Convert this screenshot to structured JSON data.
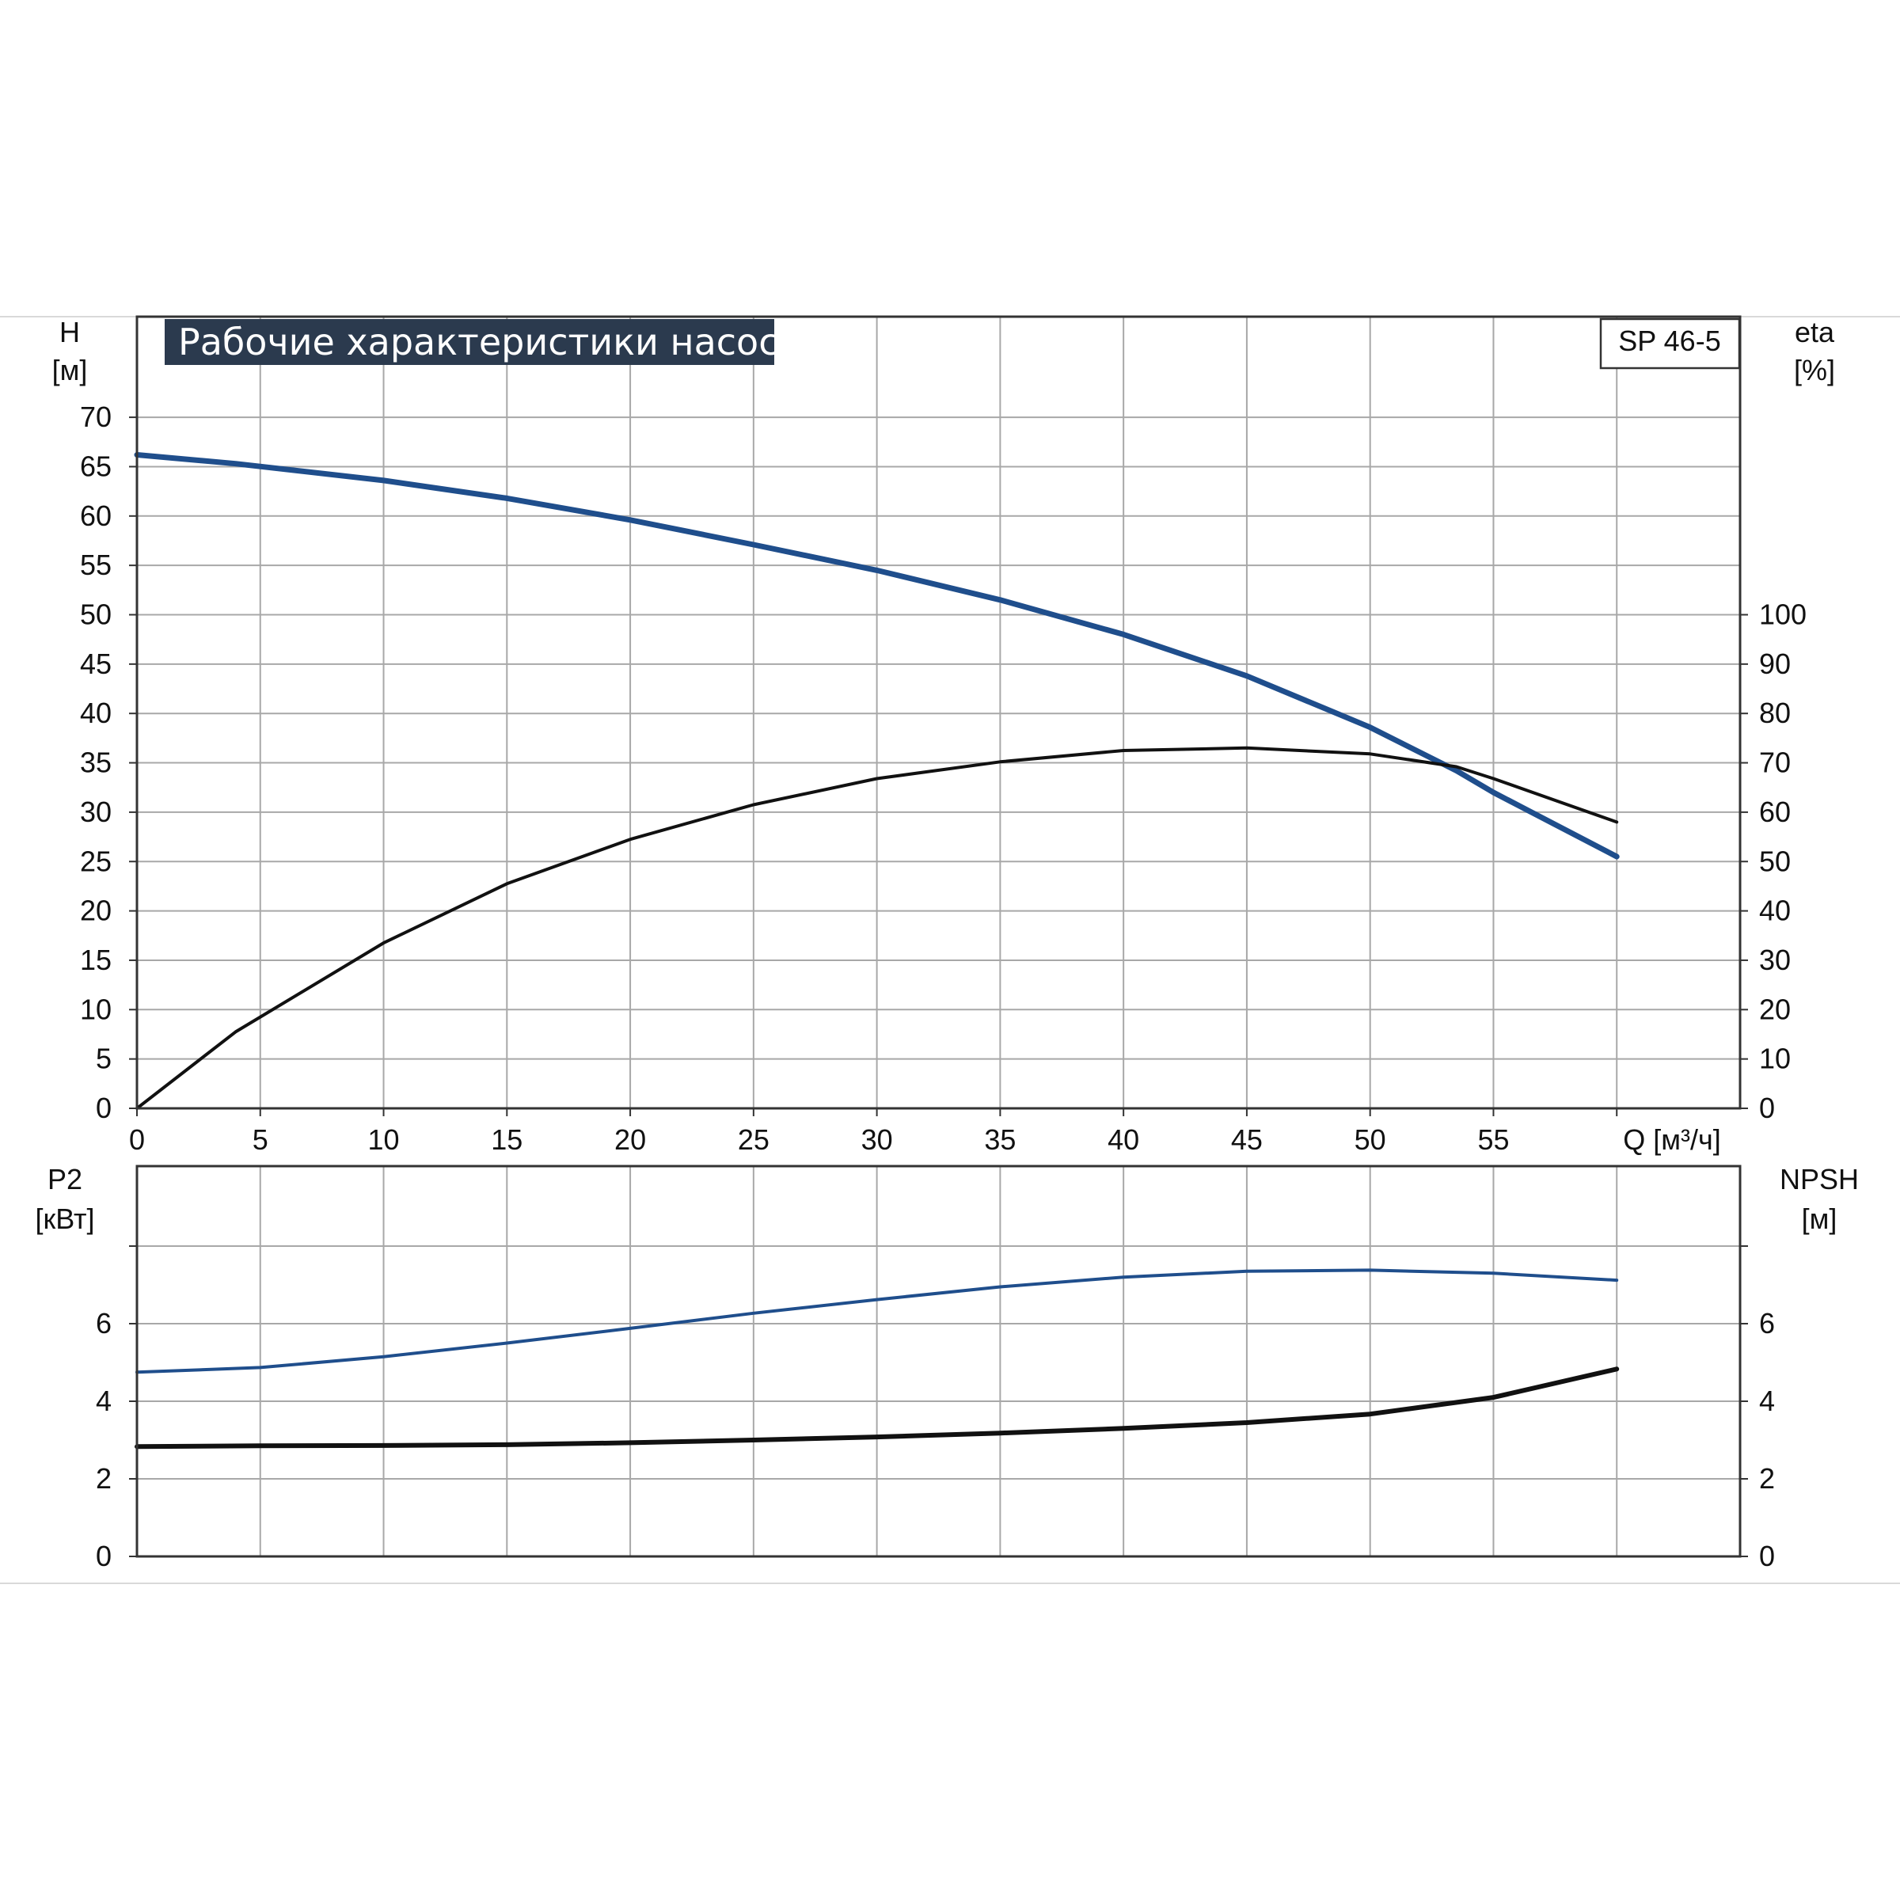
{
  "chart_data": [
    {
      "type": "line",
      "title": "Рабочие характеристики насоса",
      "model": "SP 46-5",
      "xlabel": "Q [м³/ч]",
      "xlim": [
        0,
        65
      ],
      "x_ticks": [
        "0",
        "5",
        "10",
        "15",
        "20",
        "25",
        "30",
        "35",
        "40",
        "45",
        "50",
        "55"
      ],
      "y_left": {
        "name": "H",
        "unit": "[м]",
        "lim": [
          0,
          75
        ],
        "ticks": [
          "0",
          "5",
          "10",
          "15",
          "20",
          "25",
          "30",
          "35",
          "40",
          "45",
          "50",
          "55",
          "60",
          "65",
          "70"
        ]
      },
      "y_right": {
        "name": "eta",
        "unit": "[%]",
        "lim": [
          0,
          150
        ],
        "ticks": [
          "0",
          "10",
          "20",
          "30",
          "40",
          "50",
          "60",
          "70",
          "80",
          "90",
          "100"
        ]
      },
      "grid": true,
      "series": [
        {
          "axis": "left",
          "color": "#1f4e8c",
          "x": [
            0,
            4,
            10,
            15,
            20,
            25,
            30,
            35,
            40,
            45,
            50,
            53.5,
            55,
            60
          ],
          "y": [
            66.2,
            65.3,
            63.6,
            61.8,
            59.6,
            57.1,
            54.5,
            51.5,
            48.0,
            43.8,
            38.6,
            34.2,
            32.0,
            25.5
          ]
        },
        {
          "axis": "right",
          "color": "#111111",
          "x": [
            0,
            4,
            10,
            15,
            20,
            25,
            30,
            35,
            40,
            45,
            50,
            53.5,
            55,
            60
          ],
          "y": [
            0,
            15.5,
            33.5,
            45.5,
            54.5,
            61.5,
            66.8,
            70.2,
            72.5,
            73.0,
            71.8,
            69.2,
            66.8,
            58.0
          ]
        }
      ]
    },
    {
      "type": "line",
      "left_label": "P2",
      "left_unit": "[кВт]",
      "right_label": "NPSH",
      "right_unit": "[м]",
      "xlim": [
        0,
        65
      ],
      "y_left": {
        "lim": [
          0,
          8
        ],
        "ticks": [
          "0",
          "2",
          "4",
          "6"
        ]
      },
      "y_right": {
        "lim": [
          0,
          8
        ],
        "ticks": [
          "0",
          "2",
          "4",
          "6"
        ]
      },
      "grid": true,
      "series": [
        {
          "axis": "left",
          "color": "#1f4e8c",
          "x": [
            0,
            5,
            10,
            15,
            20,
            25,
            30,
            35,
            40,
            45,
            50,
            55,
            60
          ],
          "y": [
            4.75,
            4.87,
            5.15,
            5.5,
            5.88,
            6.27,
            6.62,
            6.95,
            7.2,
            7.35,
            7.38,
            7.3,
            7.12
          ]
        },
        {
          "axis": "right",
          "color": "#111111",
          "x": [
            0,
            5,
            10,
            15,
            20,
            25,
            30,
            35,
            40,
            45,
            50,
            55,
            60
          ],
          "y": [
            2.83,
            2.85,
            2.86,
            2.88,
            2.93,
            3.0,
            3.08,
            3.18,
            3.3,
            3.45,
            3.67,
            4.1,
            4.83
          ]
        }
      ]
    }
  ]
}
